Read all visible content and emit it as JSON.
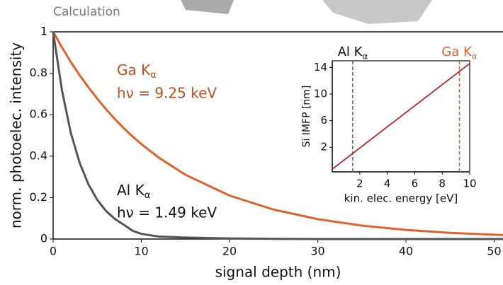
{
  "header": "Calculation",
  "chart_data": [
    {
      "type": "line",
      "x_label": "signal depth (nm)",
      "y_label": "norm. photoelec. intensity",
      "x": [
        0,
        1,
        2,
        3,
        4,
        5,
        6,
        7,
        8,
        9,
        10,
        12,
        15,
        20,
        25,
        30,
        35,
        40,
        45,
        51
      ],
      "series": [
        {
          "name": "Ga",
          "color": "#e0622a",
          "values": [
            1,
            0.925,
            0.855,
            0.791,
            0.732,
            0.677,
            0.626,
            0.579,
            0.535,
            0.495,
            0.458,
            0.392,
            0.31,
            0.21,
            0.142,
            0.096,
            0.065,
            0.044,
            0.03,
            0.019
          ]
        },
        {
          "name": "Al",
          "color": "#555555",
          "values": [
            1,
            0.717,
            0.513,
            0.368,
            0.264,
            0.189,
            0.135,
            0.097,
            0.069,
            0.04,
            0.025,
            0.012,
            0.007,
            0.003,
            0.001,
            0,
            0,
            0,
            0,
            0
          ]
        }
      ],
      "annotations": [
        {
          "text": "Ga K",
          "sub": "α",
          "color": "#c0501f"
        },
        {
          "text": "hν = 9.25 keV",
          "color": "#c0501f"
        },
        {
          "text": "Al K",
          "sub": "α",
          "color": "#111111"
        },
        {
          "text": "hν = 1.49 keV",
          "color": "#111111"
        }
      ],
      "xlim": [
        0,
        51
      ],
      "xticks": [
        0,
        10,
        20,
        30,
        40,
        50
      ],
      "ylim": [
        0,
        1
      ],
      "yticks": [
        0,
        0.2,
        0.4,
        0.6,
        0.8,
        1
      ]
    },
    {
      "type": "line",
      "x_label": "kin. elec. energy [eV]",
      "y_label": "Si IMFP [nm]",
      "x": [
        0,
        10
      ],
      "series": [
        {
          "name": "IMFP",
          "color": "#b5262b",
          "values": [
            -1.3,
            14.6
          ]
        }
      ],
      "vlines": [
        {
          "value": 1.49,
          "color": "#666666",
          "text": "Al K",
          "sub": "α"
        },
        {
          "value": 9.25,
          "color": "#e0622a",
          "text": "Ga K",
          "sub": "α"
        }
      ],
      "xlim": [
        0,
        10
      ],
      "xticks": [
        2,
        4,
        6,
        8,
        10
      ],
      "ylim": [
        -1.7,
        15
      ],
      "yticks": [
        2,
        6,
        10,
        14
      ]
    }
  ]
}
